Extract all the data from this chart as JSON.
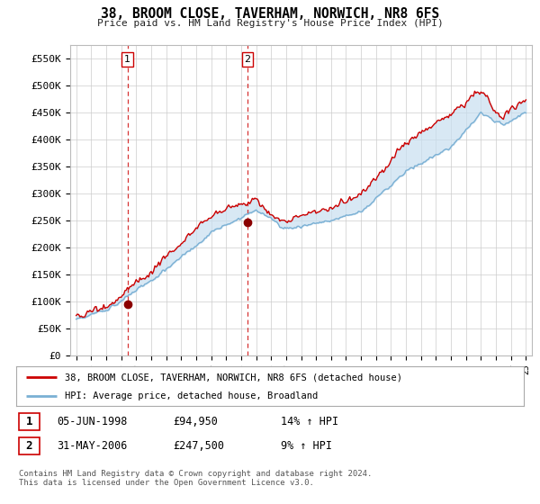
{
  "title": "38, BROOM CLOSE, TAVERHAM, NORWICH, NR8 6FS",
  "subtitle": "Price paid vs. HM Land Registry's House Price Index (HPI)",
  "ylim": [
    0,
    575000
  ],
  "yticks": [
    0,
    50000,
    100000,
    150000,
    200000,
    250000,
    300000,
    350000,
    400000,
    450000,
    500000,
    550000
  ],
  "ytick_labels": [
    "£0",
    "£50K",
    "£100K",
    "£150K",
    "£200K",
    "£250K",
    "£300K",
    "£350K",
    "£400K",
    "£450K",
    "£500K",
    "£550K"
  ],
  "line1_color": "#cc0000",
  "line2_color": "#7ab0d4",
  "fill_color": "#c8dff0",
  "marker_color": "#8b0000",
  "vline_color": "#cc0000",
  "sale1_year": 1998.42,
  "sale1_price": 94950,
  "sale1_label": "1",
  "sale2_year": 2006.42,
  "sale2_price": 247500,
  "sale2_label": "2",
  "legend1_text": "38, BROOM CLOSE, TAVERHAM, NORWICH, NR8 6FS (detached house)",
  "legend2_text": "HPI: Average price, detached house, Broadland",
  "table_row1": [
    "1",
    "05-JUN-1998",
    "£94,950",
    "14% ↑ HPI"
  ],
  "table_row2": [
    "2",
    "31-MAY-2006",
    "£247,500",
    "9% ↑ HPI"
  ],
  "footnote": "Contains HM Land Registry data © Crown copyright and database right 2024.\nThis data is licensed under the Open Government Licence v3.0.",
  "background_color": "#ffffff",
  "grid_color": "#cccccc",
  "start_year": 1995,
  "end_year": 2025
}
